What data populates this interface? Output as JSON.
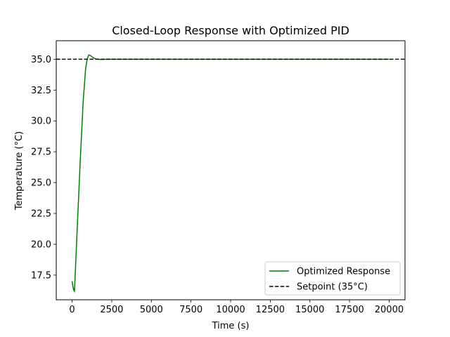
{
  "chart_data": {
    "type": "line",
    "title": "Closed-Loop Response with Optimized PID",
    "xlabel": "Time (s)",
    "ylabel": "Temperature (°C)",
    "xlim": [
      -1000,
      21000
    ],
    "ylim": [
      15.5,
      36.5
    ],
    "xticks": [
      0,
      2500,
      5000,
      7500,
      10000,
      12500,
      15000,
      17500,
      20000
    ],
    "yticks": [
      17.5,
      20.0,
      22.5,
      25.0,
      27.5,
      30.0,
      32.5,
      35.0
    ],
    "grid": false,
    "legend": "lower-right",
    "series": [
      {
        "name": "Optimized Response",
        "color": "#008000",
        "style": "solid",
        "x": [
          0,
          50,
          100,
          150,
          300,
          500,
          700,
          850,
          950,
          1050,
          1150,
          1300,
          1500,
          1800,
          2200,
          3000,
          5000,
          10000,
          15000,
          20000
        ],
        "y": [
          17.0,
          16.6,
          16.3,
          16.2,
          20.6,
          26.4,
          31.6,
          34.2,
          35.0,
          35.35,
          35.3,
          35.15,
          35.02,
          34.98,
          35.0,
          35.0,
          35.0,
          35.0,
          35.0,
          35.0
        ]
      },
      {
        "name": "Setpoint (35°C)",
        "color": "#000000",
        "style": "dashed",
        "x": [
          -1000,
          21000
        ],
        "y": [
          35.0,
          35.0
        ]
      }
    ]
  }
}
